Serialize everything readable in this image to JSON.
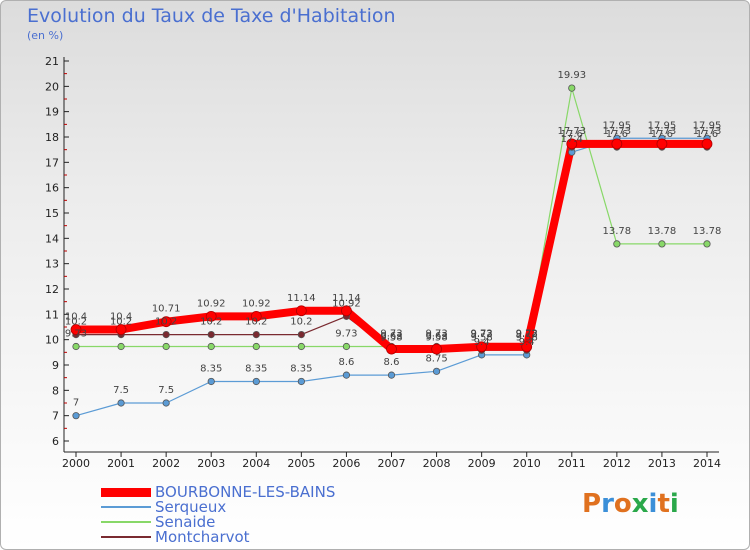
{
  "title": "Evolution du Taux de Taxe d'Habitation",
  "subtitle": "(en %)",
  "logo": {
    "letters": [
      "P",
      "r",
      "o",
      "x",
      "i",
      "t",
      "i"
    ],
    "colors": [
      "#e0711f",
      "#3b8fd8",
      "#e0711f",
      "#2aa84a",
      "#3b8fd8",
      "#e0711f",
      "#2aa84a"
    ]
  },
  "chart_data": {
    "type": "line",
    "categories": [
      "2000",
      "2001",
      "2002",
      "2003",
      "2004",
      "2005",
      "2006",
      "2007",
      "2008",
      "2009",
      "2010",
      "2011",
      "2012",
      "2013",
      "2014"
    ],
    "ylim": [
      6,
      21
    ],
    "yticks": [
      "6",
      "7",
      "8",
      "9",
      "10",
      "11",
      "12",
      "13",
      "14",
      "15",
      "16",
      "17",
      "18",
      "19",
      "20",
      "21"
    ],
    "grid": false,
    "legend_position": "bottom-left",
    "series": [
      {
        "name": "BOURBONNE-LES-BAINS",
        "color": "#ff0000",
        "width": 8,
        "values": [
          10.4,
          10.4,
          10.71,
          10.92,
          10.92,
          11.14,
          11.14,
          9.63,
          9.63,
          9.72,
          9.72,
          17.73,
          17.73,
          17.73,
          17.73
        ],
        "labels": [
          "10.4",
          "10.4",
          "10.71",
          "10.92",
          "10.92",
          "11.14",
          "11.14",
          "9.63",
          "9.63",
          "9.72",
          "9.72",
          "17.73",
          "17.73",
          "17.73",
          "17.73"
        ]
      },
      {
        "name": "Serqueux",
        "color": "#5b9bd5",
        "width": 1.2,
        "values": [
          7,
          7.5,
          7.5,
          8.35,
          8.35,
          8.35,
          8.6,
          8.6,
          8.75,
          9.4,
          9.4,
          17.4,
          17.95,
          17.95,
          17.95
        ],
        "labels": [
          "7",
          "7.5",
          "7.5",
          "8.35",
          "8.35",
          "8.35",
          "8.6",
          "8.6",
          "8.75",
          "9.4",
          "9.4",
          "17.4",
          "17.95",
          "17.95",
          "17.95"
        ]
      },
      {
        "name": "Senaide",
        "color": "#88d868",
        "width": 1.2,
        "values": [
          9.73,
          9.73,
          9.73,
          9.73,
          9.73,
          9.73,
          9.73,
          9.73,
          9.73,
          9.73,
          9.73,
          19.93,
          13.78,
          13.78,
          13.78
        ],
        "labels": [
          "9.73",
          "",
          "",
          "",
          "",
          "",
          "9.73",
          "9.73",
          "9.73",
          "9.73",
          "9.73",
          "19.93",
          "13.78",
          "13.78",
          "13.78"
        ]
      },
      {
        "name": "Montcharvot",
        "color": "#7a2a30",
        "width": 1.2,
        "values": [
          10.2,
          10.2,
          10.2,
          10.2,
          10.2,
          10.2,
          10.92,
          9.58,
          9.58,
          9.58,
          9.58,
          17.6,
          17.6,
          17.6,
          17.6
        ],
        "labels": [
          "10.2",
          "10.2",
          "10.2",
          "10.2",
          "10.2",
          "10.2",
          "10.92",
          "9.58",
          "9.58",
          "9.58",
          "9.58",
          "17.6",
          "17.6",
          "17.6",
          "17.6"
        ]
      }
    ]
  }
}
